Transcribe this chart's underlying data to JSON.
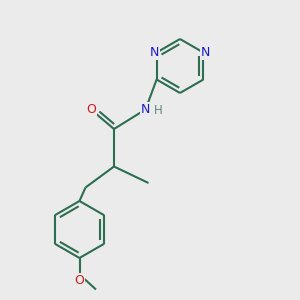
{
  "background_color": "#ebebeb",
  "bond_color": "#2d6e50",
  "bond_width": 1.5,
  "N_color": "#1a1acc",
  "O_color": "#cc1a1a",
  "H_color": "#5a8a7a",
  "font_size_atom": 8.5,
  "fig_size": [
    3.0,
    3.0
  ],
  "dpi": 100,
  "xlim": [
    0,
    10
  ],
  "ylim": [
    0,
    10
  ]
}
